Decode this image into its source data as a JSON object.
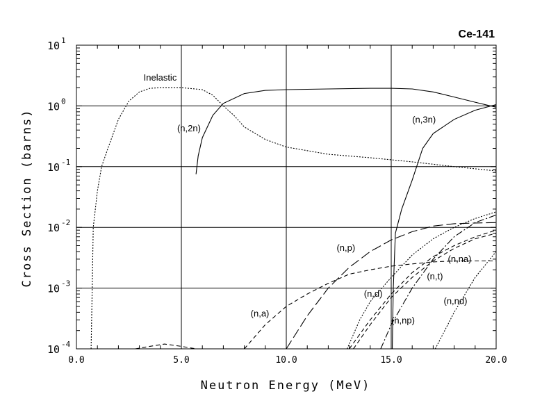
{
  "chart_data": {
    "type": "line",
    "title": "Ce-141",
    "xlabel": "Neutron Energy (MeV)",
    "ylabel": "Cross Section (barns)",
    "x_scale": "linear",
    "y_scale": "log",
    "xlim": [
      0,
      20
    ],
    "ylim": [
      0.0001,
      10
    ],
    "grid": true,
    "x_ticks": [
      "0.0",
      "5.0",
      "10.0",
      "15.0",
      "20.0"
    ],
    "y_ticks": [
      {
        "base": "10",
        "exp": "-4"
      },
      {
        "base": "10",
        "exp": "-3"
      },
      {
        "base": "10",
        "exp": "-2"
      },
      {
        "base": "10",
        "exp": "-1"
      },
      {
        "base": "10",
        "exp": "0"
      },
      {
        "base": "10",
        "exp": "1"
      }
    ],
    "series": [
      {
        "name": "Inelastic",
        "style": "dotted",
        "points": [
          [
            0.7,
            0.0001
          ],
          [
            0.75,
            0.001
          ],
          [
            0.8,
            0.01
          ],
          [
            1.0,
            0.04
          ],
          [
            1.2,
            0.1
          ],
          [
            1.5,
            0.2
          ],
          [
            2.0,
            0.6
          ],
          [
            2.5,
            1.2
          ],
          [
            3.0,
            1.7
          ],
          [
            3.5,
            1.95
          ],
          [
            4.0,
            2.0
          ],
          [
            5.0,
            2.0
          ],
          [
            6.0,
            1.85
          ],
          [
            6.5,
            1.5
          ],
          [
            7.0,
            1.0
          ],
          [
            7.5,
            0.7
          ],
          [
            8.0,
            0.45
          ],
          [
            9.0,
            0.28
          ],
          [
            10.0,
            0.21
          ],
          [
            12.0,
            0.16
          ],
          [
            14.0,
            0.14
          ],
          [
            16.0,
            0.12
          ],
          [
            18.0,
            0.1
          ],
          [
            20.0,
            0.085
          ]
        ],
        "label_at": [
          3.2,
          2.6
        ]
      },
      {
        "name": "(n,2n)",
        "style": "solid",
        "points": [
          [
            5.7,
            0.075
          ],
          [
            5.8,
            0.15
          ],
          [
            6.0,
            0.3
          ],
          [
            6.5,
            0.7
          ],
          [
            7.0,
            1.1
          ],
          [
            8.0,
            1.6
          ],
          [
            9.0,
            1.8
          ],
          [
            10.0,
            1.85
          ],
          [
            12.0,
            1.9
          ],
          [
            14.0,
            1.95
          ],
          [
            15.0,
            1.95
          ],
          [
            16.0,
            1.9
          ],
          [
            17.0,
            1.7
          ],
          [
            18.0,
            1.4
          ],
          [
            19.0,
            1.15
          ],
          [
            20.0,
            0.95
          ]
        ]
      },
      {
        "name": "(n,3n)",
        "style": "solid",
        "points": [
          [
            15.05,
            0.0001
          ],
          [
            15.1,
            0.001
          ],
          [
            15.2,
            0.008
          ],
          [
            15.5,
            0.02
          ],
          [
            16.0,
            0.06
          ],
          [
            16.5,
            0.2
          ],
          [
            17.0,
            0.35
          ],
          [
            18.0,
            0.6
          ],
          [
            19.0,
            0.85
          ],
          [
            20.0,
            1.05
          ]
        ]
      },
      {
        "name": "(n,p)",
        "style": "long-dash",
        "points": [
          [
            10.0,
            0.0001
          ],
          [
            11.0,
            0.00035
          ],
          [
            12.0,
            0.001
          ],
          [
            13.0,
            0.0022
          ],
          [
            14.0,
            0.004
          ],
          [
            15.0,
            0.0062
          ],
          [
            16.0,
            0.0085
          ],
          [
            17.0,
            0.0105
          ],
          [
            18.0,
            0.0115
          ],
          [
            19.0,
            0.0118
          ],
          [
            20.0,
            0.012
          ]
        ]
      },
      {
        "name": "(n,a)",
        "style": "dashed",
        "points": [
          [
            8.0,
            0.0001
          ],
          [
            9.0,
            0.00025
          ],
          [
            10.0,
            0.0005
          ],
          [
            11.0,
            0.0008
          ],
          [
            12.0,
            0.0012
          ],
          [
            13.0,
            0.0017
          ],
          [
            14.0,
            0.002
          ],
          [
            15.0,
            0.0023
          ],
          [
            16.0,
            0.0025
          ],
          [
            17.0,
            0.0027
          ],
          [
            18.0,
            0.0028
          ],
          [
            19.0,
            0.0028
          ],
          [
            20.0,
            0.0028
          ]
        ]
      },
      {
        "name": "(n,d)",
        "style": "dotted",
        "points": [
          [
            12.9,
            0.0001
          ],
          [
            13.5,
            0.0003
          ],
          [
            14.0,
            0.0006
          ],
          [
            15.0,
            0.0015
          ],
          [
            16.0,
            0.0035
          ],
          [
            17.0,
            0.0065
          ],
          [
            18.0,
            0.01
          ],
          [
            19.0,
            0.014
          ],
          [
            20.0,
            0.018
          ]
        ]
      },
      {
        "name": "(n,t)",
        "style": "dashed",
        "points": [
          [
            13.2,
            0.0001
          ],
          [
            14.0,
            0.00025
          ],
          [
            15.0,
            0.0007
          ],
          [
            16.0,
            0.0015
          ],
          [
            17.0,
            0.0028
          ],
          [
            18.0,
            0.0045
          ],
          [
            19.0,
            0.0065
          ],
          [
            20.0,
            0.008
          ]
        ]
      },
      {
        "name": "(n,np)",
        "style": "dash-dot",
        "points": [
          [
            14.5,
            0.0001
          ],
          [
            15.0,
            0.00025
          ],
          [
            16.0,
            0.001
          ],
          [
            17.0,
            0.003
          ],
          [
            18.0,
            0.007
          ],
          [
            19.0,
            0.012
          ],
          [
            20.0,
            0.016
          ]
        ]
      },
      {
        "name": "(n,na)",
        "style": "dashed",
        "points": [
          [
            13.0,
            0.0001
          ],
          [
            14.0,
            0.0003
          ],
          [
            15.0,
            0.0008
          ],
          [
            16.0,
            0.0018
          ],
          [
            17.0,
            0.0033
          ],
          [
            18.0,
            0.005
          ],
          [
            19.0,
            0.007
          ],
          [
            20.0,
            0.009
          ]
        ]
      },
      {
        "name": "(n,nd)",
        "style": "dotted",
        "points": [
          [
            17.1,
            0.0001
          ],
          [
            18.0,
            0.0004
          ],
          [
            19.0,
            0.0015
          ],
          [
            20.0,
            0.004
          ]
        ]
      },
      {
        "name": "",
        "style": "dashed",
        "points": [
          [
            2.8,
            0.0001
          ],
          [
            3.5,
            0.00011
          ],
          [
            4.2,
            0.00012
          ],
          [
            5.0,
            0.00011
          ],
          [
            5.7,
            0.0001
          ]
        ]
      }
    ],
    "annotations": [
      {
        "text": "Inelastic",
        "x": 3.2,
        "y": 2.6
      },
      {
        "text": "(n,2n)",
        "x": 4.8,
        "y": 0.38
      },
      {
        "text": "(n,3n)",
        "x": 16.0,
        "y": 0.53
      },
      {
        "text": "(n,p)",
        "x": 12.4,
        "y": 0.0041
      },
      {
        "text": "(n,a)",
        "x": 8.3,
        "y": 0.00034
      },
      {
        "text": "(n,d)",
        "x": 13.7,
        "y": 0.00072
      },
      {
        "text": "(n,t)",
        "x": 16.7,
        "y": 0.0014
      },
      {
        "text": "(n,np)",
        "x": 15.0,
        "y": 0.00026
      },
      {
        "text": "(n,na)",
        "x": 17.7,
        "y": 0.0027
      },
      {
        "text": "(n,nd)",
        "x": 17.5,
        "y": 0.00055
      }
    ]
  }
}
